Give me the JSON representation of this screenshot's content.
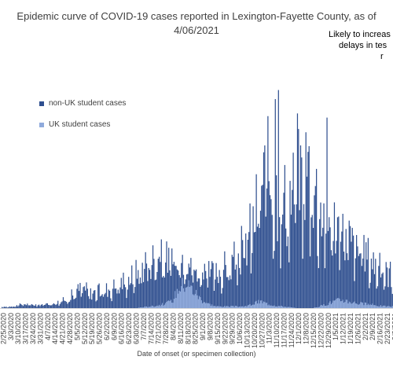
{
  "chart_data": {
    "type": "bar",
    "title": "Epidemic curve of COVID-19 cases reported in Lexington-Fayette County, as of",
    "subtitle": "4/06/2021",
    "annotation": [
      "Likely to increas",
      "delays in tes",
      "r"
    ],
    "xlabel": "Date of onset (or specimen collection)",
    "ylabel": "",
    "ylim": [
      0,
      260
    ],
    "stacked": true,
    "grid": false,
    "legend_position": "top-left",
    "colors": {
      "non_uk": "#2F4F8F",
      "uk": "#8FAADC",
      "axis": "#d9d9d9",
      "text": "#404040"
    },
    "date_range": [
      "2/25/2020",
      "4/06/2021"
    ],
    "tick_labels": [
      "2/25/2020",
      "3/3/2020",
      "3/10/2020",
      "3/17/2020",
      "3/24/2020",
      "3/31/2020",
      "4/7/2020",
      "4/14/2020",
      "4/21/2020",
      "4/28/2020",
      "5/5/2020",
      "5/12/2020",
      "5/19/2020",
      "5/26/2020",
      "6/2/2020",
      "6/9/2020",
      "6/16/2020",
      "6/23/2020",
      "6/30/2020",
      "7/7/2020",
      "7/14/2020",
      "7/21/2020",
      "7/28/2020",
      "8/4/2020",
      "8/11/2020",
      "8/18/2020",
      "8/25/2020",
      "9/1/2020",
      "9/8/2020",
      "9/15/2020",
      "9/22/2020",
      "9/29/2020",
      "10/6/2020",
      "10/13/2020",
      "10/20/2020",
      "10/27/2020",
      "11/3/2020",
      "11/10/2020",
      "11/17/2020",
      "11/24/2020",
      "12/1/2020",
      "12/8/2020",
      "12/15/2020",
      "12/22/2020",
      "12/29/2020",
      "1/5/2021",
      "1/12/2021",
      "1/19/2021",
      "1/26/2021",
      "2/2/2021",
      "2/9/2021",
      "2/16/2021",
      "2/23/2021",
      "3/2/2021"
    ],
    "series": [
      {
        "name": "non-UK student cases",
        "color": "#2F4F8F",
        "weekly_average_values": [
          1,
          2,
          3,
          5,
          4,
          4,
          5,
          6,
          8,
          12,
          20,
          25,
          18,
          20,
          22,
          25,
          30,
          35,
          40,
          50,
          60,
          55,
          55,
          45,
          30,
          25,
          25,
          30,
          35,
          40,
          45,
          50,
          60,
          75,
          95,
          130,
          160,
          140,
          125,
          130,
          150,
          170,
          160,
          120,
          100,
          95,
          80,
          75,
          65,
          60,
          55,
          45,
          40
        ]
      },
      {
        "name": "UK student cases",
        "color": "#8FAADC",
        "weekly_average_values": [
          0,
          0,
          0,
          0,
          0,
          0,
          0,
          0,
          0,
          0,
          0,
          0,
          0,
          0,
          0,
          0,
          0,
          0,
          0,
          1,
          2,
          3,
          5,
          8,
          25,
          30,
          20,
          10,
          5,
          2,
          2,
          2,
          2,
          2,
          5,
          8,
          5,
          3,
          2,
          1,
          0,
          0,
          0,
          2,
          5,
          8,
          10,
          8,
          6,
          5,
          4,
          3,
          2
        ]
      }
    ],
    "notable_peaks": [
      {
        "date": "11/10/2020",
        "value": 245
      },
      {
        "date": "11/13/2020",
        "value": 255
      },
      {
        "date": "12/1/2020",
        "value": 230
      },
      {
        "date": "12/29/2020",
        "value": 222
      }
    ]
  }
}
